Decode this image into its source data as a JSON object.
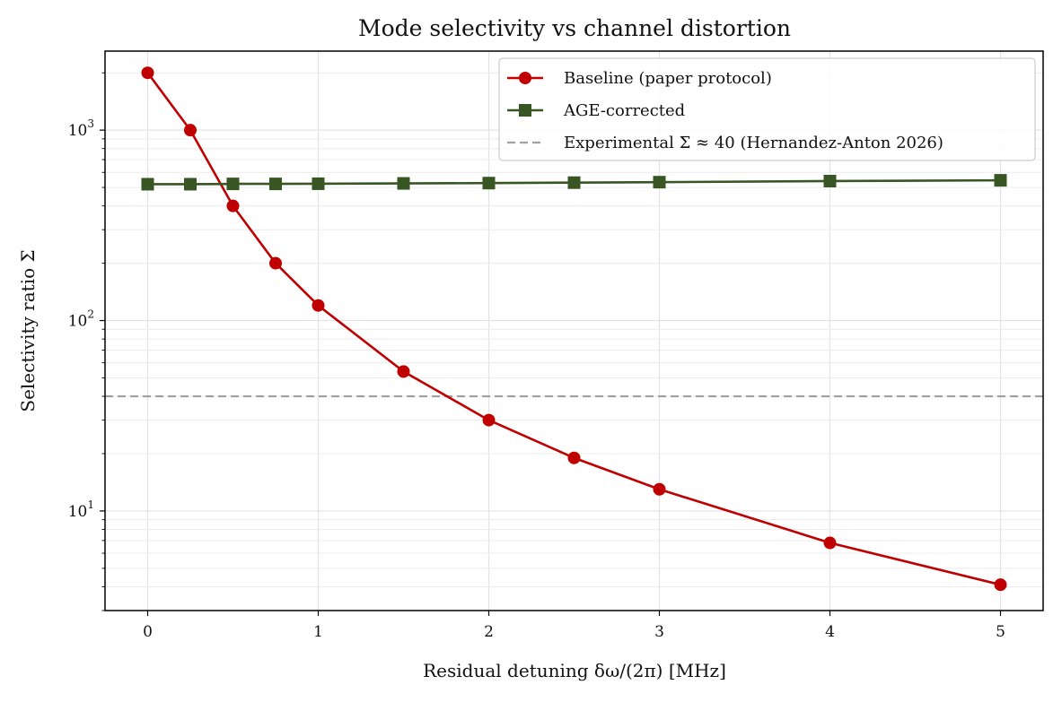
{
  "chart_data": {
    "type": "line",
    "title": "Mode selectivity vs channel distortion",
    "xlabel": "Residual detuning δω/(2π) [MHz]",
    "ylabel": "Selectivity ratio Σ",
    "xscale": "linear",
    "yscale": "log",
    "xlim": [
      -0.25,
      5.25
    ],
    "ylim": [
      3.0,
      2600
    ],
    "grid": true,
    "legend_position": "top-right",
    "xticks": [
      {
        "value": 0,
        "label": "0"
      },
      {
        "value": 1,
        "label": "1"
      },
      {
        "value": 2,
        "label": "2"
      },
      {
        "value": 3,
        "label": "3"
      },
      {
        "value": 4,
        "label": "4"
      },
      {
        "value": 5,
        "label": "5"
      }
    ],
    "yticks": [
      {
        "value": 10,
        "base": "10",
        "exp": "1"
      },
      {
        "value": 100,
        "base": "10",
        "exp": "2"
      },
      {
        "value": 1000,
        "base": "10",
        "exp": "3"
      }
    ],
    "series": [
      {
        "name": "Baseline (paper protocol)",
        "color": "#c00000",
        "marker": "circle",
        "x": [
          0,
          0.25,
          0.5,
          0.75,
          1,
          1.5,
          2,
          2.5,
          3,
          4,
          5
        ],
        "y": [
          2000,
          1000,
          400,
          200,
          120,
          54,
          30,
          19,
          13,
          6.8,
          4.1
        ]
      },
      {
        "name": "AGE-corrected",
        "color": "#375623",
        "marker": "square",
        "x": [
          0,
          0.25,
          0.5,
          0.75,
          1,
          1.5,
          2,
          2.5,
          3,
          4,
          5
        ],
        "y": [
          520,
          520,
          522,
          522,
          523,
          525,
          527,
          530,
          533,
          540,
          545
        ]
      }
    ],
    "reference_lines": [
      {
        "name": "Experimental Σ ≈ 40 (Hernandez-Anton 2026)",
        "orientation": "horizontal",
        "y": 40,
        "color": "#a0a0a0",
        "style": "dashed"
      }
    ]
  }
}
